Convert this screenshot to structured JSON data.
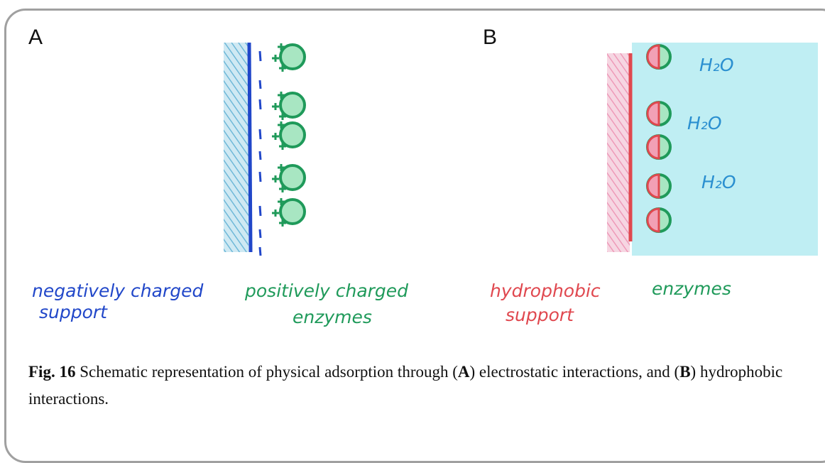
{
  "panels": [
    {
      "letter": "A",
      "support_label": [
        "negatively charged",
        "support"
      ],
      "enzyme_label": [
        "positively charged",
        "enzymes"
      ]
    },
    {
      "letter": "B",
      "support_label": [
        "hydrophobic",
        "support"
      ],
      "enzyme_label": [
        "enzymes"
      ],
      "water_labels": [
        "H₂O",
        "H₂O",
        "H₂O"
      ]
    }
  ],
  "caption": {
    "label": "Fig. 16",
    "parts": [
      " Schematic representation of physical adsorption through (",
      "A",
      ") electrostatic interactions, and (",
      "B",
      ") hydrophobic interactions."
    ]
  }
}
